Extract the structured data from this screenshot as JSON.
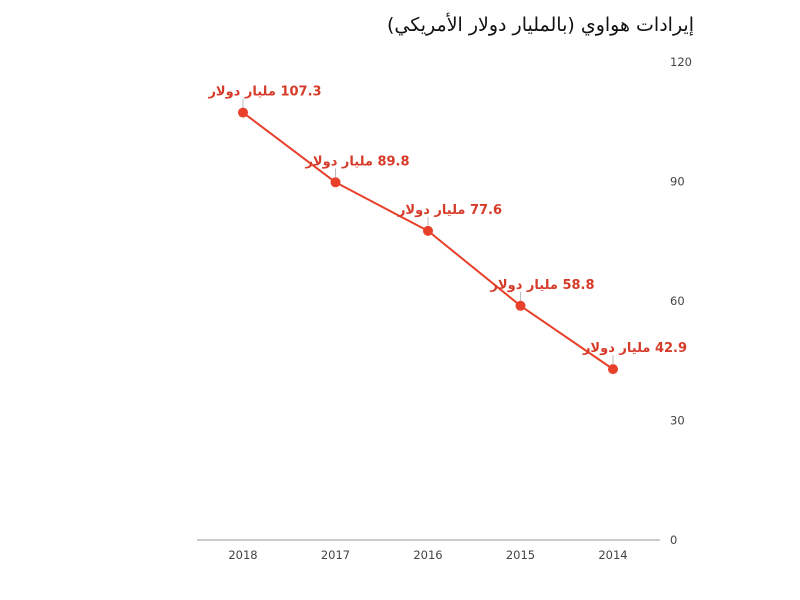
{
  "chart_data": {
    "type": "line",
    "title": "إيرادات هواوي (بالمليار دولار الأمريكي)",
    "x": [
      "2018",
      "2017",
      "2016",
      "2015",
      "2014"
    ],
    "series": [
      {
        "values": [
          107.3,
          89.8,
          77.6,
          58.8,
          42.9
        ],
        "data_labels": [
          "107.3 مليار دولار",
          "89.8 مليار دولار",
          "77.6 مليار دولار",
          "58.8 مليار دولار",
          "42.9 مليار دولار"
        ]
      }
    ],
    "yticks": [
      "0",
      "30",
      "60",
      "90",
      "120"
    ],
    "ylim": [
      0,
      120
    ],
    "y_axis_position": "right",
    "x_order": "descending-left-to-right",
    "grid": false,
    "colors": {
      "line": "#e8402a",
      "label": "#d63b2a",
      "axis": "#999999"
    }
  }
}
